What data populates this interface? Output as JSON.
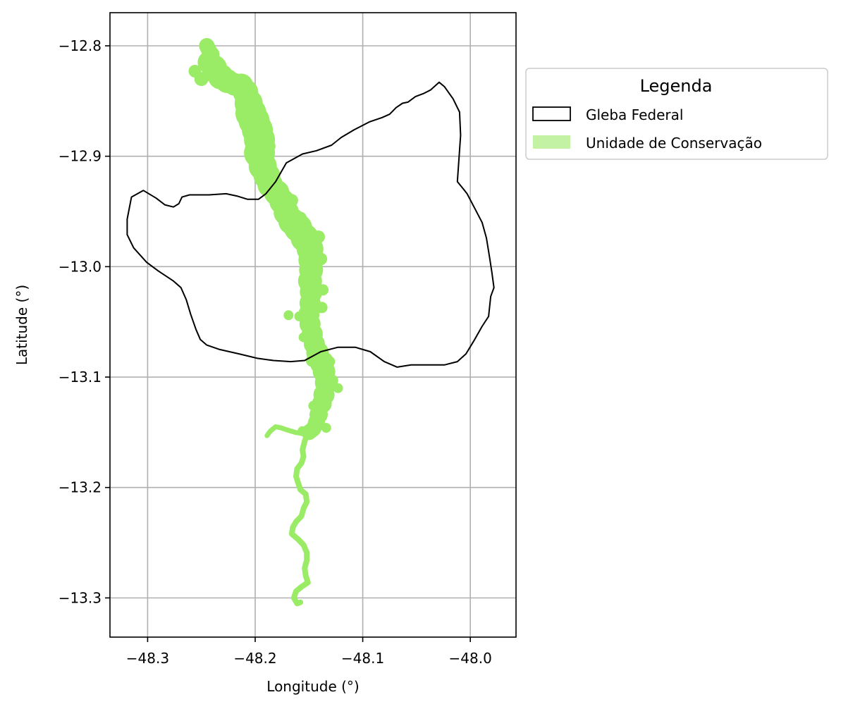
{
  "chart_data": {
    "type": "map",
    "xlabel": "Longitude (°)",
    "ylabel": "Latitude (°)",
    "xlim": [
      -48.335,
      -47.9575
    ],
    "ylim": [
      -13.3355,
      -12.77
    ],
    "xticks": [
      -48.3,
      -48.2,
      -48.1,
      -48.0
    ],
    "yticks": [
      -12.8,
      -12.9,
      -13.0,
      -13.1,
      -13.2,
      -13.3
    ],
    "xtick_labels": [
      "−48.3",
      "−48.2",
      "−48.1",
      "−48.0"
    ],
    "ytick_labels": [
      "−12.8",
      "−12.9",
      "−13.0",
      "−13.1",
      "−13.2",
      "−13.3"
    ],
    "grid": true,
    "legend": {
      "title": "Legenda",
      "placement": "outside upper right",
      "entries": [
        "Gleba Federal",
        "Unidade de Conservação"
      ]
    },
    "colors": {
      "gleba_edge": "#000000",
      "uc_fill": "#9aeb65",
      "uc_legend_fill": "#c3f2a4",
      "grid": "#b0b0b0"
    },
    "layers": [
      {
        "name": "Gleba Federal",
        "kind": "polygon_outline",
        "coords": [
          [
            -48.304,
            -12.931
          ],
          [
            -48.292,
            -12.938
          ],
          [
            -48.284,
            -12.944
          ],
          [
            -48.276,
            -12.946
          ],
          [
            -48.271,
            -12.943
          ],
          [
            -48.268,
            -12.937
          ],
          [
            -48.261,
            -12.935
          ],
          [
            -48.243,
            -12.935
          ],
          [
            -48.227,
            -12.934
          ],
          [
            -48.217,
            -12.936
          ],
          [
            -48.207,
            -12.939
          ],
          [
            -48.197,
            -12.939
          ],
          [
            -48.19,
            -12.934
          ],
          [
            -48.181,
            -12.923
          ],
          [
            -48.171,
            -12.906
          ],
          [
            -48.156,
            -12.898
          ],
          [
            -48.143,
            -12.895
          ],
          [
            -48.129,
            -12.89
          ],
          [
            -48.12,
            -12.883
          ],
          [
            -48.108,
            -12.876
          ],
          [
            -48.094,
            -12.869
          ],
          [
            -48.082,
            -12.865
          ],
          [
            -48.075,
            -12.862
          ],
          [
            -48.069,
            -12.856
          ],
          [
            -48.063,
            -12.852
          ],
          [
            -48.058,
            -12.851
          ],
          [
            -48.051,
            -12.846
          ],
          [
            -48.043,
            -12.843
          ],
          [
            -48.037,
            -12.84
          ],
          [
            -48.029,
            -12.833
          ],
          [
            -48.024,
            -12.837
          ],
          [
            -48.016,
            -12.848
          ],
          [
            -48.01,
            -12.86
          ],
          [
            -48.009,
            -12.881
          ],
          [
            -48.012,
            -12.923
          ],
          [
            -48.007,
            -12.929
          ],
          [
            -48.003,
            -12.934
          ],
          [
            -47.996,
            -12.947
          ],
          [
            -47.989,
            -12.96
          ],
          [
            -47.985,
            -12.974
          ],
          [
            -47.982,
            -12.992
          ],
          [
            -47.98,
            -13.005
          ],
          [
            -47.978,
            -13.019
          ],
          [
            -47.981,
            -13.027
          ],
          [
            -47.983,
            -13.045
          ],
          [
            -47.989,
            -13.054
          ],
          [
            -47.996,
            -13.066
          ],
          [
            -48.004,
            -13.079
          ],
          [
            -48.012,
            -13.086
          ],
          [
            -48.024,
            -13.089
          ],
          [
            -48.037,
            -13.089
          ],
          [
            -48.055,
            -13.089
          ],
          [
            -48.068,
            -13.091
          ],
          [
            -48.08,
            -13.086
          ],
          [
            -48.093,
            -13.077
          ],
          [
            -48.107,
            -13.073
          ],
          [
            -48.123,
            -13.073
          ],
          [
            -48.139,
            -13.077
          ],
          [
            -48.154,
            -13.085
          ],
          [
            -48.167,
            -13.086
          ],
          [
            -48.183,
            -13.085
          ],
          [
            -48.198,
            -13.083
          ],
          [
            -48.215,
            -13.079
          ],
          [
            -48.233,
            -13.075
          ],
          [
            -48.245,
            -13.071
          ],
          [
            -48.251,
            -13.066
          ],
          [
            -48.255,
            -13.057
          ],
          [
            -48.26,
            -13.043
          ],
          [
            -48.264,
            -13.03
          ],
          [
            -48.269,
            -13.019
          ],
          [
            -48.276,
            -13.013
          ],
          [
            -48.29,
            -13.004
          ],
          [
            -48.301,
            -12.996
          ],
          [
            -48.313,
            -12.983
          ],
          [
            -48.319,
            -12.971
          ],
          [
            -48.319,
            -12.957
          ],
          [
            -48.315,
            -12.937
          ],
          [
            -48.304,
            -12.931
          ]
        ]
      },
      {
        "name": "Unidade de Conservação",
        "kind": "filled_region",
        "upper_corridor": [
          [
            -48.245,
            -12.8
          ],
          [
            -48.241,
            -12.808
          ],
          [
            -48.243,
            -12.815
          ],
          [
            -48.238,
            -12.82
          ],
          [
            -48.232,
            -12.828
          ],
          [
            -48.226,
            -12.832
          ],
          [
            -48.219,
            -12.835
          ],
          [
            -48.213,
            -12.836
          ],
          [
            -48.209,
            -12.842
          ],
          [
            -48.206,
            -12.852
          ],
          [
            -48.204,
            -12.861
          ],
          [
            -48.201,
            -12.868
          ],
          [
            -48.198,
            -12.876
          ],
          [
            -48.196,
            -12.885
          ],
          [
            -48.196,
            -12.897
          ],
          [
            -48.193,
            -12.909
          ],
          [
            -48.189,
            -12.918
          ],
          [
            -48.186,
            -12.926
          ],
          [
            -48.18,
            -12.933
          ],
          [
            -48.175,
            -12.941
          ],
          [
            -48.171,
            -12.951
          ],
          [
            -48.166,
            -12.959
          ],
          [
            -48.16,
            -12.965
          ],
          [
            -48.154,
            -12.974
          ],
          [
            -48.149,
            -12.984
          ],
          [
            -48.148,
            -12.994
          ],
          [
            -48.148,
            -13.003
          ],
          [
            -48.149,
            -13.013
          ],
          [
            -48.148,
            -13.023
          ],
          [
            -48.149,
            -13.033
          ],
          [
            -48.15,
            -13.043
          ],
          [
            -48.149,
            -13.052
          ],
          [
            -48.147,
            -13.061
          ],
          [
            -48.145,
            -13.07
          ],
          [
            -48.142,
            -13.078
          ],
          [
            -48.138,
            -13.087
          ],
          [
            -48.136,
            -13.095
          ],
          [
            -48.134,
            -13.105
          ],
          [
            -48.136,
            -13.116
          ],
          [
            -48.138,
            -13.124
          ],
          [
            -48.141,
            -13.134
          ],
          [
            -48.143,
            -13.141
          ],
          [
            -48.146,
            -13.147
          ],
          [
            -48.15,
            -13.15
          ]
        ],
        "upper_corridor_sizes": [
          10,
          12,
          16,
          18,
          18,
          17,
          16,
          17,
          18,
          20,
          22,
          22,
          22,
          22,
          22,
          20,
          19,
          18,
          18,
          18,
          18,
          19,
          20,
          20,
          19,
          18,
          17,
          17,
          16,
          15,
          15,
          15,
          15,
          15,
          16,
          17,
          16,
          16,
          15,
          14,
          13,
          12,
          11,
          10
        ],
        "upper_blobs": [
          [
            -48.256,
            -12.823,
            9
          ],
          [
            -48.25,
            -12.83,
            10
          ],
          [
            -48.241,
            -12.826,
            10
          ],
          [
            -48.224,
            -12.829,
            8
          ],
          [
            -48.214,
            -12.832,
            9
          ],
          [
            -48.208,
            -12.858,
            8
          ],
          [
            -48.19,
            -12.876,
            10
          ],
          [
            -48.187,
            -12.891,
            9
          ],
          [
            -48.204,
            -12.889,
            8
          ],
          [
            -48.196,
            -12.911,
            8
          ],
          [
            -48.182,
            -12.934,
            8
          ],
          [
            -48.166,
            -12.94,
            9
          ],
          [
            -48.172,
            -12.957,
            8
          ],
          [
            -48.158,
            -12.956,
            9
          ],
          [
            -48.141,
            -12.973,
            9
          ],
          [
            -48.139,
            -12.993,
            9
          ],
          [
            -48.137,
            -13.021,
            8
          ],
          [
            -48.138,
            -13.037,
            8
          ],
          [
            -48.159,
            -13.045,
            7
          ],
          [
            -48.169,
            -13.044,
            7
          ],
          [
            -48.155,
            -13.064,
            7
          ],
          [
            -48.147,
            -13.085,
            9
          ],
          [
            -48.131,
            -13.086,
            8
          ],
          [
            -48.128,
            -13.103,
            8
          ],
          [
            -48.123,
            -13.11,
            7
          ],
          [
            -48.146,
            -13.126,
            7
          ],
          [
            -48.134,
            -13.146,
            7
          ],
          [
            -48.156,
            -13.149,
            7
          ]
        ],
        "tributary": [
          [
            -48.151,
            -13.15
          ],
          [
            -48.157,
            -13.151
          ],
          [
            -48.163,
            -13.15
          ],
          [
            -48.17,
            -13.148
          ],
          [
            -48.176,
            -13.146
          ],
          [
            -48.181,
            -13.145
          ],
          [
            -48.186,
            -13.149
          ],
          [
            -48.189,
            -13.153
          ]
        ],
        "lower_river": [
          [
            -48.151,
            -13.15
          ],
          [
            -48.154,
            -13.158
          ],
          [
            -48.156,
            -13.166
          ],
          [
            -48.155,
            -13.172
          ],
          [
            -48.157,
            -13.178
          ],
          [
            -48.161,
            -13.183
          ],
          [
            -48.162,
            -13.19
          ],
          [
            -48.16,
            -13.196
          ],
          [
            -48.158,
            -13.202
          ],
          [
            -48.153,
            -13.206
          ],
          [
            -48.152,
            -13.213
          ],
          [
            -48.155,
            -13.219
          ],
          [
            -48.157,
            -13.226
          ],
          [
            -48.162,
            -13.231
          ],
          [
            -48.165,
            -13.236
          ],
          [
            -48.166,
            -13.242
          ],
          [
            -48.16,
            -13.247
          ],
          [
            -48.155,
            -13.252
          ],
          [
            -48.152,
            -13.259
          ],
          [
            -48.152,
            -13.266
          ],
          [
            -48.154,
            -13.273
          ],
          [
            -48.153,
            -13.28
          ],
          [
            -48.151,
            -13.286
          ],
          [
            -48.157,
            -13.29
          ],
          [
            -48.162,
            -13.294
          ],
          [
            -48.164,
            -13.3
          ],
          [
            -48.161,
            -13.305
          ],
          [
            -48.158,
            -13.304
          ]
        ]
      }
    ]
  }
}
